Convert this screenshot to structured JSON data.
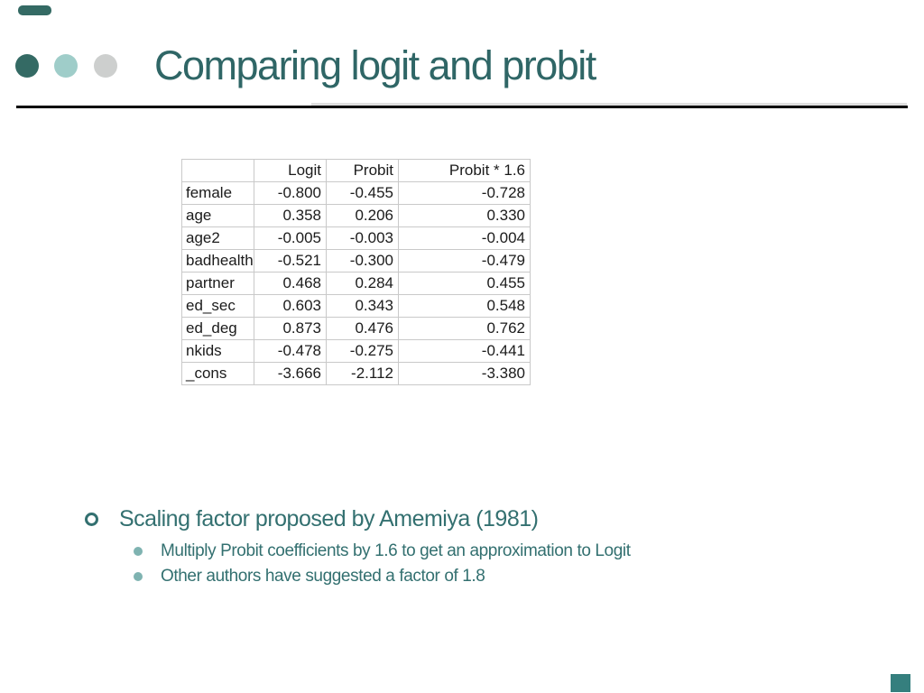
{
  "slide": {
    "title": "Comparing logit and probit",
    "colors": {
      "title_text": "#2F6666",
      "body_text": "#337070",
      "accent_dark_teal": "#346A64",
      "accent_light_teal": "#9FCDC9",
      "accent_gray": "#CDCFCE",
      "sub_bullet_dot": "#7FB3B1",
      "divider_black": "#000000",
      "divider_gray": "#DEDEDE",
      "table_border": "#C9C9C9",
      "corner_square_teal": "#357F7E"
    }
  },
  "table": {
    "headers": [
      "",
      "Logit",
      "Probit",
      "Probit * 1.6"
    ],
    "rows": [
      {
        "label": "female",
        "values": [
          "-0.800",
          "-0.455",
          "-0.728"
        ]
      },
      {
        "label": "age",
        "values": [
          "0.358",
          "0.206",
          "0.330"
        ]
      },
      {
        "label": "age2",
        "values": [
          "-0.005",
          "-0.003",
          "-0.004"
        ]
      },
      {
        "label": "badhealth",
        "values": [
          "-0.521",
          "-0.300",
          "-0.479"
        ]
      },
      {
        "label": "partner",
        "values": [
          "0.468",
          "0.284",
          "0.455"
        ]
      },
      {
        "label": "ed_sec",
        "values": [
          "0.603",
          "0.343",
          "0.548"
        ]
      },
      {
        "label": "ed_deg",
        "values": [
          "0.873",
          "0.476",
          "0.762"
        ]
      },
      {
        "label": "nkids",
        "values": [
          "-0.478",
          "-0.275",
          "-0.441"
        ]
      },
      {
        "label": "_cons",
        "values": [
          "-3.666",
          "-2.112",
          "-3.380"
        ]
      }
    ]
  },
  "bullets": {
    "level1": {
      "text": "Scaling factor proposed by Amemiya (1981)"
    },
    "level2": [
      {
        "text": "Multiply Probit coefficients by 1.6 to get an approximation to Logit"
      },
      {
        "text": "Other authors have suggested a factor of 1.8"
      }
    ]
  }
}
